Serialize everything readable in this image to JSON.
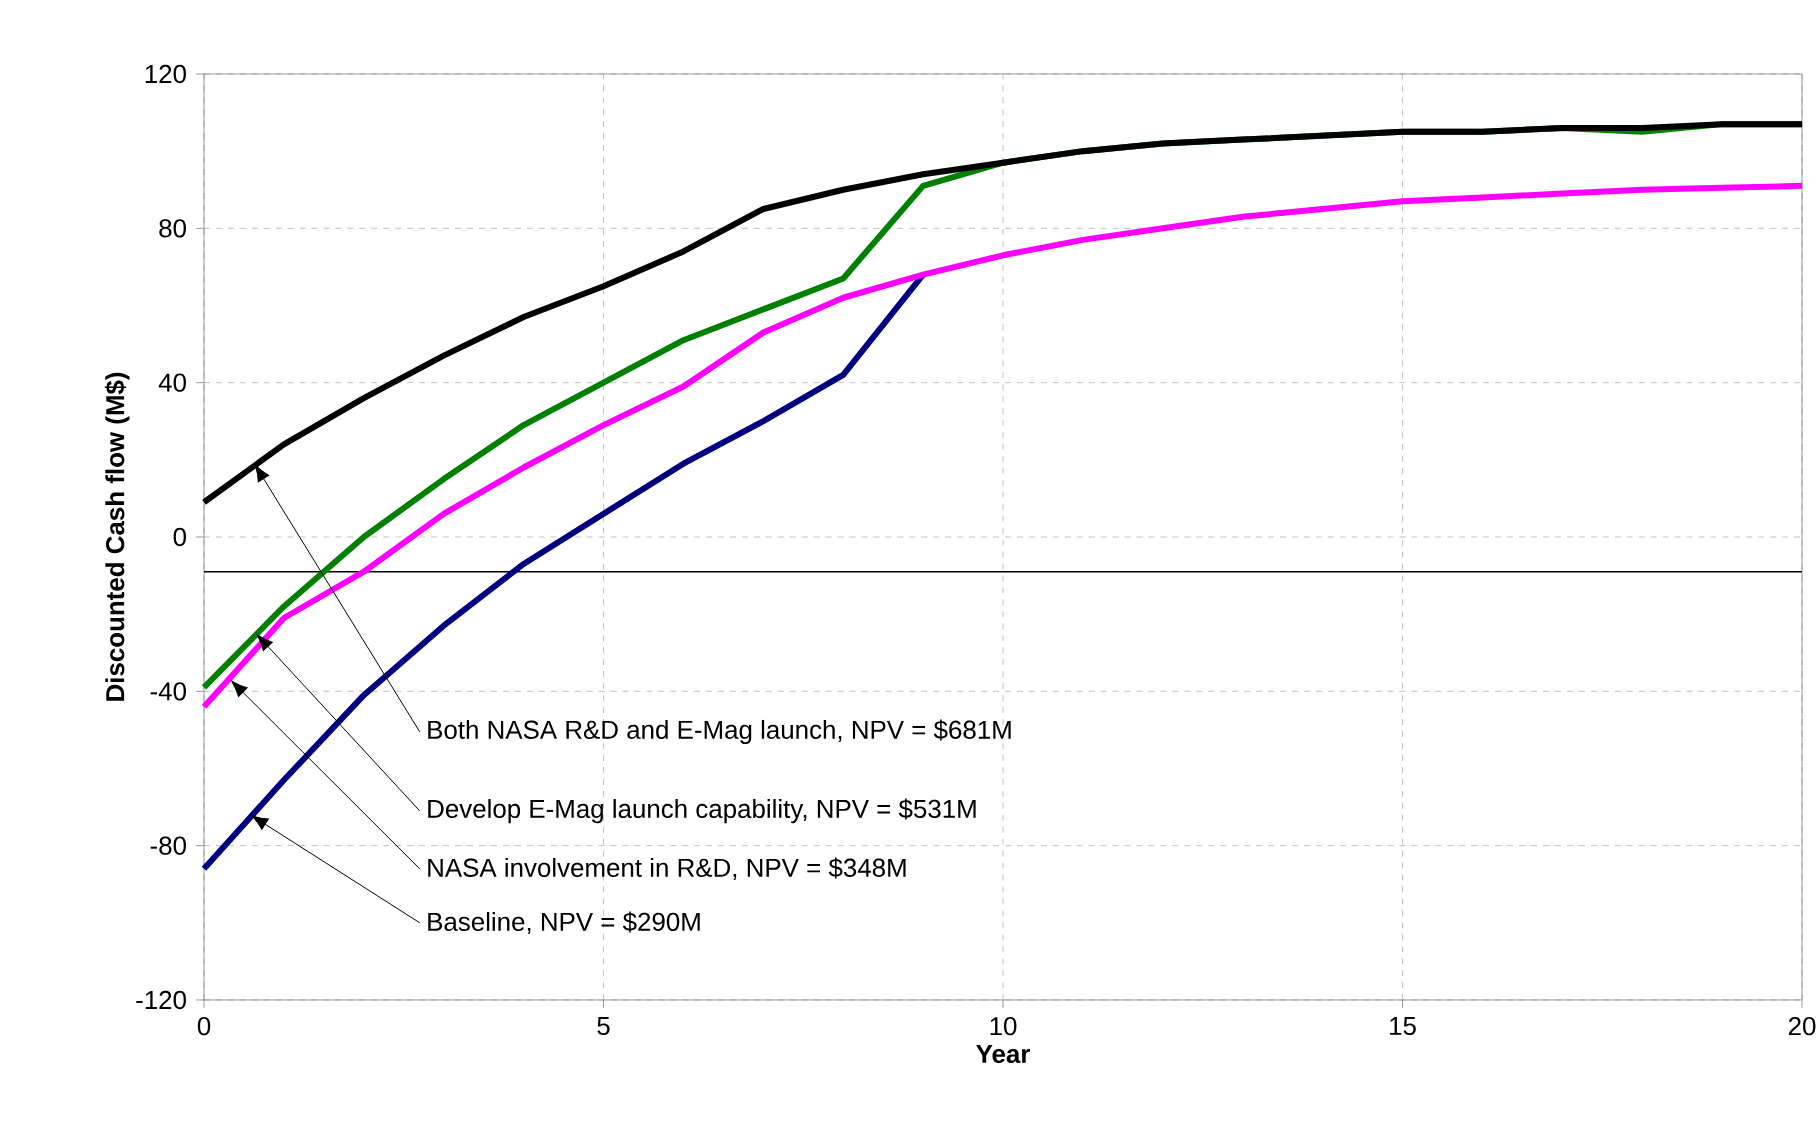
{
  "chart_data": {
    "type": "line",
    "xlabel": "Year",
    "ylabel": "Discounted Cash flow (M$)",
    "x": [
      0,
      1,
      2,
      3,
      4,
      5,
      6,
      7,
      8,
      9,
      10,
      11,
      12,
      13,
      14,
      15,
      16,
      17,
      18,
      19,
      20
    ],
    "series": [
      {
        "color": "#000080",
        "values": [
          -86,
          -63,
          -41,
          -23,
          -7,
          6,
          19,
          30,
          42,
          68,
          null,
          null,
          null,
          null,
          null,
          null,
          null,
          null,
          null,
          null,
          null
        ]
      },
      {
        "color": "#ff00ff",
        "values": [
          -44,
          -21,
          -9,
          6,
          18,
          29,
          39,
          53,
          62,
          68,
          73,
          77,
          80,
          83,
          85,
          87,
          88,
          89,
          90,
          90.5,
          91
        ]
      },
      {
        "color": "#008000",
        "values": [
          -39,
          -18,
          0,
          15,
          29,
          40,
          51,
          59,
          67,
          91,
          97,
          100,
          102,
          103,
          104,
          105,
          105,
          106,
          105,
          107,
          107
        ]
      },
      {
        "color": "#000000",
        "values": [
          9,
          24,
          36,
          47,
          57,
          65,
          74,
          85,
          90,
          94,
          97,
          100,
          102,
          103,
          104,
          105,
          105,
          106,
          106,
          107,
          107
        ]
      }
    ],
    "xlim": [
      0,
      20
    ],
    "ylim": [
      -120,
      120
    ],
    "xticks": [
      0,
      5,
      10,
      15,
      20
    ],
    "yticks": [
      -120,
      -80,
      -40,
      0,
      40,
      80,
      120
    ],
    "grid": true,
    "marker": "none",
    "line_style": "solid",
    "ref_lines": [
      {
        "axis": "y",
        "value": -9,
        "color": "#000000"
      }
    ],
    "annotations": [
      {
        "text": "Both NASA R&D and E-Mag launch, NPV = $681M",
        "x": 0.63,
        "y": 19
      },
      {
        "text": "Develop E-Mag launch capability, NPV = $531M",
        "x": 0.65,
        "y": -25
      },
      {
        "text": "NASA involvement in R&D, NPV = $348M",
        "x": 0.33,
        "y": -37
      },
      {
        "text": "Baseline, NPV = $290M",
        "x": 0.58,
        "y": -72
      }
    ]
  }
}
